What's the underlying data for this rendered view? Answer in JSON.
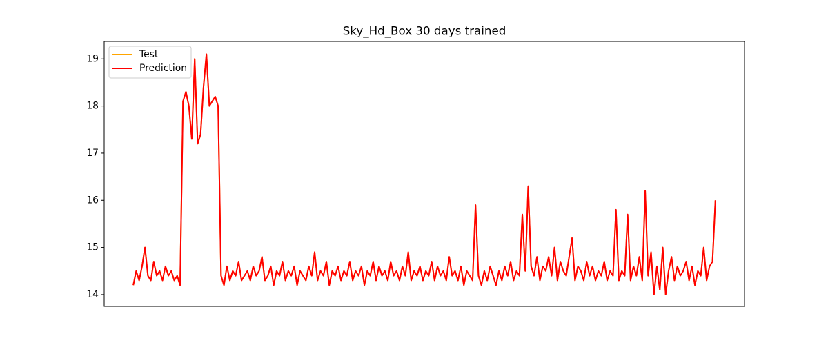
{
  "chart_data": {
    "type": "line",
    "title": "Sky_Hd_Box 30 days trained",
    "ylim": [
      13.75,
      19.37
    ],
    "yticks": [
      14,
      15,
      16,
      17,
      18,
      19
    ],
    "legend": "upper left",
    "series": [
      {
        "name": "Test",
        "color": "#ffa500",
        "values": [
          14.2,
          14.5,
          14.3,
          14.6,
          15.0,
          14.4,
          14.3,
          14.7,
          14.4,
          14.5,
          14.3,
          14.6,
          14.4,
          14.5,
          14.3,
          14.4,
          14.2,
          18.1,
          18.3,
          18.0,
          17.3,
          19.0,
          17.2,
          17.4,
          18.4,
          19.1,
          18.0,
          18.1,
          18.2,
          18.0,
          14.4,
          14.2,
          14.6,
          14.3,
          14.5,
          14.4,
          14.7,
          14.3,
          14.4,
          14.5,
          14.3,
          14.6,
          14.4,
          14.5,
          14.8,
          14.3,
          14.4,
          14.6,
          14.2,
          14.5,
          14.4,
          14.7,
          14.3,
          14.5,
          14.4,
          14.6,
          14.2,
          14.5,
          14.4,
          14.3,
          14.6,
          14.4,
          14.9,
          14.3,
          14.5,
          14.4,
          14.7,
          14.2,
          14.5,
          14.4,
          14.6,
          14.3,
          14.5,
          14.4,
          14.7,
          14.3,
          14.5,
          14.4,
          14.6,
          14.2,
          14.5,
          14.4,
          14.7,
          14.3,
          14.6,
          14.4,
          14.5,
          14.3,
          14.7,
          14.4,
          14.5,
          14.3,
          14.6,
          14.4,
          14.9,
          14.3,
          14.5,
          14.4,
          14.6,
          14.3,
          14.5,
          14.4,
          14.7,
          14.3,
          14.6,
          14.4,
          14.5,
          14.3,
          14.8,
          14.4,
          14.5,
          14.3,
          14.6,
          14.2,
          14.5,
          14.4,
          14.3,
          15.9,
          14.4,
          14.2,
          14.5,
          14.3,
          14.6,
          14.4,
          14.2,
          14.5,
          14.3,
          14.6,
          14.4,
          14.7,
          14.3,
          14.5,
          14.4,
          15.7,
          14.5,
          16.3,
          14.6,
          14.4,
          14.8,
          14.3,
          14.6,
          14.5,
          14.8,
          14.4,
          15.0,
          14.3,
          14.7,
          14.5,
          14.4,
          14.8,
          15.2,
          14.3,
          14.6,
          14.5,
          14.3,
          14.7,
          14.4,
          14.6,
          14.3,
          14.5,
          14.4,
          14.7,
          14.3,
          14.5,
          14.4,
          15.8,
          14.3,
          14.5,
          14.4,
          15.7,
          14.3,
          14.6,
          14.4,
          14.8,
          14.3,
          16.2,
          14.4,
          14.9,
          14.0,
          14.6,
          14.1,
          15.0,
          14.0,
          14.5,
          14.8,
          14.3,
          14.6,
          14.4,
          14.5,
          14.7,
          14.3,
          14.6,
          14.2,
          14.5,
          14.4,
          15.0,
          14.3,
          14.6,
          14.7,
          16.0
        ]
      },
      {
        "name": "Prediction",
        "color": "#ff0000",
        "values": [
          14.2,
          14.5,
          14.3,
          14.6,
          15.0,
          14.4,
          14.3,
          14.7,
          14.4,
          14.5,
          14.3,
          14.6,
          14.4,
          14.5,
          14.3,
          14.4,
          14.2,
          18.1,
          18.3,
          18.0,
          17.3,
          19.0,
          17.2,
          17.4,
          18.4,
          19.1,
          18.0,
          18.1,
          18.2,
          18.0,
          14.4,
          14.2,
          14.6,
          14.3,
          14.5,
          14.4,
          14.7,
          14.3,
          14.4,
          14.5,
          14.3,
          14.6,
          14.4,
          14.5,
          14.8,
          14.3,
          14.4,
          14.6,
          14.2,
          14.5,
          14.4,
          14.7,
          14.3,
          14.5,
          14.4,
          14.6,
          14.2,
          14.5,
          14.4,
          14.3,
          14.6,
          14.4,
          14.9,
          14.3,
          14.5,
          14.4,
          14.7,
          14.2,
          14.5,
          14.4,
          14.6,
          14.3,
          14.5,
          14.4,
          14.7,
          14.3,
          14.5,
          14.4,
          14.6,
          14.2,
          14.5,
          14.4,
          14.7,
          14.3,
          14.6,
          14.4,
          14.5,
          14.3,
          14.7,
          14.4,
          14.5,
          14.3,
          14.6,
          14.4,
          14.9,
          14.3,
          14.5,
          14.4,
          14.6,
          14.3,
          14.5,
          14.4,
          14.7,
          14.3,
          14.6,
          14.4,
          14.5,
          14.3,
          14.8,
          14.4,
          14.5,
          14.3,
          14.6,
          14.2,
          14.5,
          14.4,
          14.3,
          15.9,
          14.4,
          14.2,
          14.5,
          14.3,
          14.6,
          14.4,
          14.2,
          14.5,
          14.3,
          14.6,
          14.4,
          14.7,
          14.3,
          14.5,
          14.4,
          15.7,
          14.5,
          16.3,
          14.6,
          14.4,
          14.8,
          14.3,
          14.6,
          14.5,
          14.8,
          14.4,
          15.0,
          14.3,
          14.7,
          14.5,
          14.4,
          14.8,
          15.2,
          14.3,
          14.6,
          14.5,
          14.3,
          14.7,
          14.4,
          14.6,
          14.3,
          14.5,
          14.4,
          14.7,
          14.3,
          14.5,
          14.4,
          15.8,
          14.3,
          14.5,
          14.4,
          15.7,
          14.3,
          14.6,
          14.4,
          14.8,
          14.3,
          16.2,
          14.4,
          14.9,
          14.0,
          14.6,
          14.1,
          15.0,
          14.0,
          14.5,
          14.8,
          14.3,
          14.6,
          14.4,
          14.5,
          14.7,
          14.3,
          14.6,
          14.2,
          14.5,
          14.4,
          15.0,
          14.3,
          14.6,
          14.7,
          16.0
        ]
      }
    ]
  }
}
